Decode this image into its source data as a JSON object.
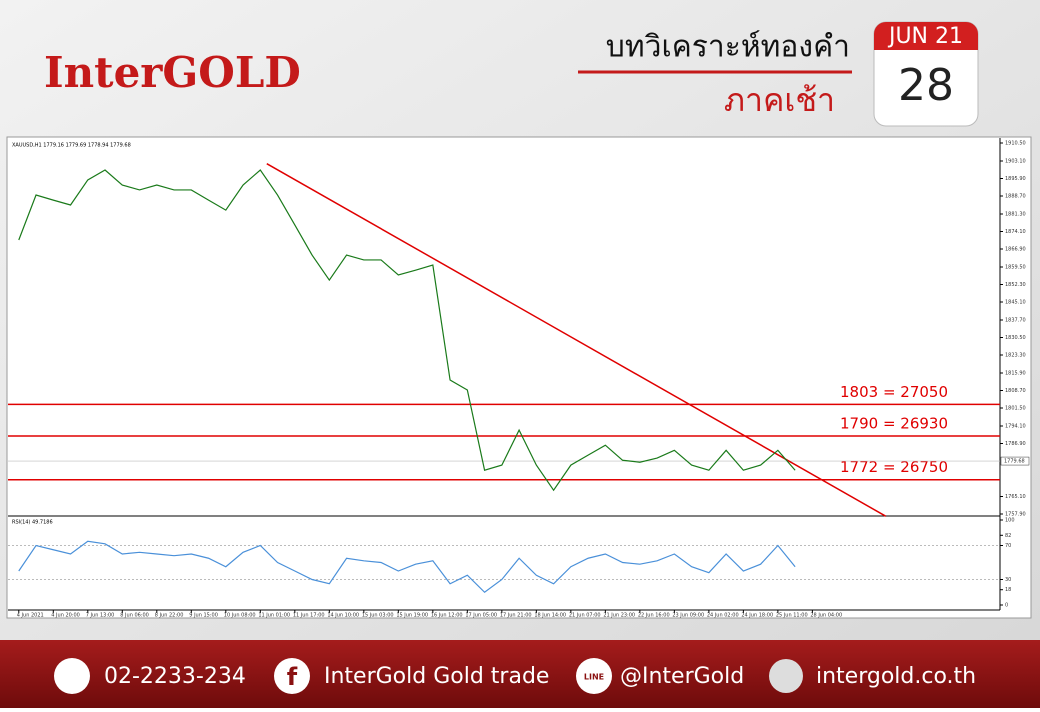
{
  "header": {
    "brand": "InterGOLD",
    "title": "บทวิเคราะห์ทองคำ",
    "subtitle": "ภาคเช้า",
    "month": "JUN 21",
    "day": "28"
  },
  "footer": {
    "phone": "02-2233-234",
    "facebook": "InterGold Gold trade",
    "line": "@InterGold",
    "web": "intergold.co.th"
  },
  "chart_data": [
    {
      "type": "line",
      "title": "XAUUSD,H1 1779.16 1779.69 1778.94 1779.68",
      "color": "#1a7a1a",
      "x": [
        0,
        8,
        16,
        24,
        32,
        40,
        48,
        56,
        64,
        72,
        80,
        88,
        96,
        104,
        112,
        120,
        128,
        136,
        144,
        152,
        160,
        168,
        176,
        184,
        192,
        200,
        208,
        216,
        224,
        232,
        240,
        248,
        256,
        264,
        272,
        280,
        288,
        296,
        304,
        312,
        320,
        328,
        336,
        344,
        352,
        360
      ],
      "values": [
        1870.6,
        1889.1,
        1887,
        1885,
        1895.3,
        1899.4,
        1893.2,
        1891.2,
        1893.2,
        1891.2,
        1891.2,
        1887,
        1882.9,
        1893.2,
        1899.4,
        1889.1,
        1876.8,
        1864.4,
        1854.1,
        1864.4,
        1862.4,
        1862.4,
        1856.2,
        1858.2,
        1860.3,
        1813,
        1808.9,
        1775.9,
        1778,
        1792.4,
        1778,
        1767.7,
        1778,
        1782.1,
        1786.2,
        1780,
        1779.2,
        1780.9,
        1784.1,
        1778,
        1775.9,
        1784.1,
        1775.9,
        1778,
        1784.1,
        1775.9
      ],
      "xlim": [
        -5,
        455
      ],
      "ylim": [
        1757.9,
        1910.5
      ],
      "xticks": [
        {
          "value": 0,
          "label": "4 Jun 2021"
        },
        {
          "value": 16,
          "label": "4 Jun 20:00"
        },
        {
          "value": 32,
          "label": "7 Jun 13:00"
        },
        {
          "value": 48,
          "label": "8 Jun 06:00"
        },
        {
          "value": 64,
          "label": "8 Jun 22:00"
        },
        {
          "value": 80,
          "label": "9 Jun 15:00"
        },
        {
          "value": 96,
          "label": "10 Jun 08:00"
        },
        {
          "value": 112,
          "label": "11 Jun 01:00"
        },
        {
          "value": 128,
          "label": "11 Jun 17:00"
        },
        {
          "value": 144,
          "label": "14 Jun 10:00"
        },
        {
          "value": 160,
          "label": "15 Jun 03:00"
        },
        {
          "value": 176,
          "label": "15 Jun 19:00"
        },
        {
          "value": 192,
          "label": "16 Jun 12:00"
        },
        {
          "value": 208,
          "label": "17 Jun 05:00"
        },
        {
          "value": 224,
          "label": "17 Jun 21:00"
        },
        {
          "value": 240,
          "label": "18 Jun 14:00"
        },
        {
          "value": 256,
          "label": "21 Jun 07:00"
        },
        {
          "value": 272,
          "label": "21 Jun 23:00"
        },
        {
          "value": 288,
          "label": "22 Jun 16:00"
        },
        {
          "value": 304,
          "label": "23 Jun 09:00"
        },
        {
          "value": 320,
          "label": "24 Jun 02:00"
        },
        {
          "value": 336,
          "label": "24 Jun 18:00"
        },
        {
          "value": 352,
          "label": "25 Jun 11:00"
        },
        {
          "value": 368,
          "label": "28 Jun 04:00"
        }
      ],
      "yticks": [
        {
          "value": 1910.5,
          "label": "1910.50"
        },
        {
          "value": 1903.1,
          "label": "1903.10"
        },
        {
          "value": 1895.9,
          "label": "1895.90"
        },
        {
          "value": 1888.7,
          "label": "1888.70"
        },
        {
          "value": 1881.3,
          "label": "1881.30"
        },
        {
          "value": 1874.1,
          "label": "1874.10"
        },
        {
          "value": 1866.9,
          "label": "1866.90"
        },
        {
          "value": 1859.5,
          "label": "1859.50"
        },
        {
          "value": 1852.3,
          "label": "1852.30"
        },
        {
          "value": 1845.1,
          "label": "1845.10"
        },
        {
          "value": 1837.7,
          "label": "1837.70"
        },
        {
          "value": 1830.5,
          "label": "1830.50"
        },
        {
          "value": 1823.3,
          "label": "1823.30"
        },
        {
          "value": 1815.9,
          "label": "1815.90"
        },
        {
          "value": 1808.7,
          "label": "1808.70"
        },
        {
          "value": 1801.5,
          "label": "1801.50"
        },
        {
          "value": 1794.1,
          "label": "1794.10"
        },
        {
          "value": 1786.9,
          "label": "1786.90"
        },
        {
          "value": 1765.1,
          "label": "1765.10"
        },
        {
          "value": 1757.9,
          "label": "1757.90"
        }
      ],
      "levels": [
        {
          "value": 1803,
          "label": "1803 = 27050"
        },
        {
          "value": 1790,
          "label": "1790 = 26930"
        },
        {
          "value": 1772,
          "label": "1772 = 26750"
        }
      ],
      "level_color": "#e00000",
      "current_price": {
        "value": 1779.68,
        "label": "1779.68"
      },
      "trendline": {
        "x": [
          115,
          402
        ],
        "y": [
          1902,
          1757
        ]
      }
    },
    {
      "type": "line",
      "title": "RSI(14) 49.7186",
      "color": "#4a90d9",
      "x": [
        0,
        8,
        16,
        24,
        32,
        40,
        48,
        56,
        64,
        72,
        80,
        88,
        96,
        104,
        112,
        120,
        128,
        136,
        144,
        152,
        160,
        168,
        176,
        184,
        192,
        200,
        208,
        216,
        224,
        232,
        240,
        248,
        256,
        264,
        272,
        280,
        288,
        296,
        304,
        312,
        320,
        328,
        336,
        344,
        352,
        360
      ],
      "values": [
        40,
        70,
        65,
        60,
        75,
        72,
        60,
        62,
        60,
        58,
        60,
        55,
        45,
        62,
        70,
        50,
        40,
        30,
        25,
        55,
        52,
        50,
        40,
        48,
        52,
        25,
        35,
        15,
        30,
        55,
        35,
        25,
        45,
        55,
        60,
        50,
        48,
        52,
        60,
        45,
        38,
        60,
        40,
        48,
        70,
        45
      ],
      "xlim": [
        -5,
        455
      ],
      "ylim": [
        0,
        100
      ],
      "yticks": [
        0,
        18,
        30,
        70,
        82,
        100
      ]
    }
  ]
}
